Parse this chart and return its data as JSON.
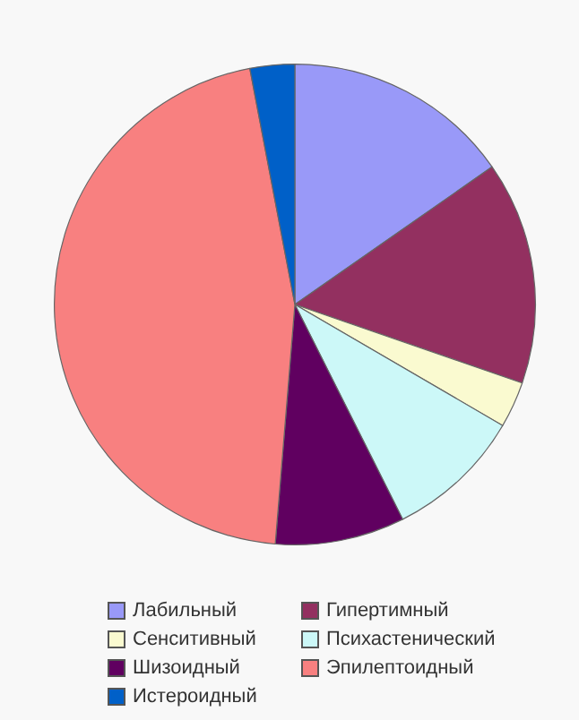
{
  "chart_data": {
    "type": "pie",
    "categories": [
      "Лабильный",
      "Гипертимный",
      "Сенситивный",
      "Психастенический",
      "Шизоидный",
      "Эпилептоидный",
      "Истероидный"
    ],
    "values": [
      15.3,
      15,
      3.1,
      9.2,
      8.7,
      45.7,
      3
    ],
    "colors": [
      "#9999f8",
      "#933060",
      "#fafad0",
      "#ccf8f8",
      "#600060",
      "#f88080",
      "#0060c8"
    ],
    "legend": "bottom"
  }
}
